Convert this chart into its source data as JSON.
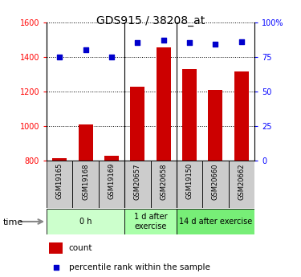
{
  "title": "GDS915 / 38208_at",
  "samples": [
    "GSM19165",
    "GSM19168",
    "GSM19169",
    "GSM20657",
    "GSM20658",
    "GSM19150",
    "GSM20660",
    "GSM20662"
  ],
  "counts": [
    815,
    1010,
    830,
    1225,
    1455,
    1330,
    1210,
    1315
  ],
  "percentiles": [
    75,
    80,
    75,
    85,
    87,
    85,
    84,
    86
  ],
  "ylim_left": [
    800,
    1600
  ],
  "ylim_right": [
    0,
    100
  ],
  "yticks_left": [
    800,
    1000,
    1200,
    1400,
    1600
  ],
  "yticks_right": [
    0,
    25,
    50,
    75,
    100
  ],
  "ytick_labels_right": [
    "0",
    "25",
    "50",
    "75",
    "100%"
  ],
  "bar_color": "#cc0000",
  "dot_color": "#0000cc",
  "groups": [
    {
      "label": "0 h",
      "start": 0,
      "end": 3,
      "color": "#ccffcc"
    },
    {
      "label": "1 d after\nexercise",
      "start": 3,
      "end": 5,
      "color": "#aaffaa"
    },
    {
      "label": "14 d after exercise",
      "start": 5,
      "end": 8,
      "color": "#77ee77"
    }
  ],
  "group_boundaries": [
    3,
    5
  ],
  "time_label": "time",
  "legend_count": "count",
  "legend_pct": "percentile rank within the sample",
  "sample_bg": "#cccccc",
  "title_fontsize": 10,
  "tick_fontsize": 7,
  "label_fontsize": 7
}
